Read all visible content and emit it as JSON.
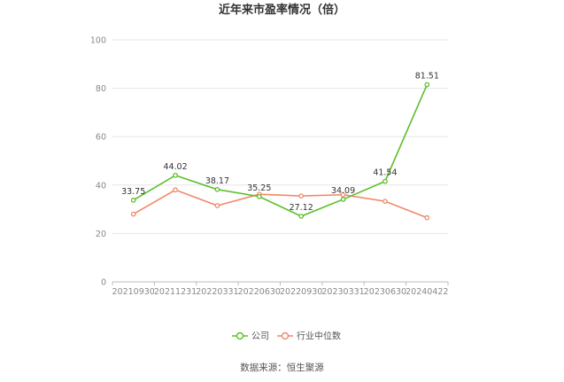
{
  "chart_data": {
    "type": "line",
    "title": "近年来市盈率情况（倍）",
    "categories": [
      "20210930",
      "20211231",
      "20220331",
      "20220630",
      "20220930",
      "20230331",
      "20230630",
      "20240422"
    ],
    "series": [
      {
        "name": "公司",
        "color": "#5cbf2a",
        "values": [
          33.75,
          44.02,
          38.17,
          35.25,
          27.12,
          34.09,
          41.54,
          81.51
        ],
        "labels": [
          "33.75",
          "44.02",
          "38.17",
          "35.25",
          "27.12",
          "34.09",
          "41.54",
          "81.51"
        ]
      },
      {
        "name": "行业中位数",
        "color": "#f0896a",
        "values": [
          28.0,
          38.0,
          31.5,
          36.2,
          35.5,
          36.0,
          33.3,
          26.5
        ]
      }
    ],
    "ylim": [
      0,
      100
    ],
    "yticks": [
      0,
      20,
      40,
      60,
      80,
      100
    ],
    "xlabel": "",
    "ylabel": "",
    "grid": true,
    "legend": "bottom-center"
  },
  "source": "数据来源：恒生聚源"
}
